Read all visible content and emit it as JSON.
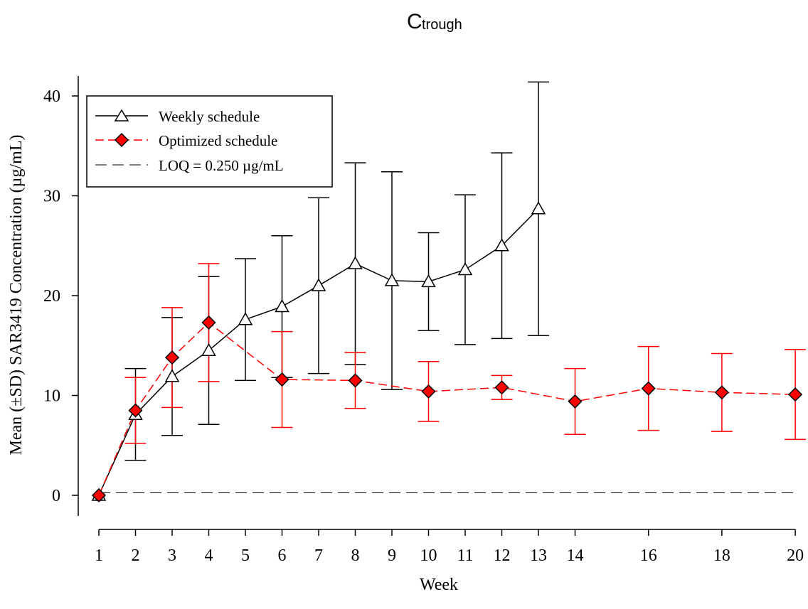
{
  "chart_data": {
    "type": "line",
    "title_main": "C",
    "title_sub": "trough",
    "xlabel": "Week",
    "ylabel": "Mean (±SD) SAR3419 Concentration  (µg/mL)",
    "xlim": [
      1,
      20
    ],
    "ylim": [
      -2,
      42
    ],
    "x_ticks": [
      1,
      2,
      3,
      4,
      5,
      6,
      7,
      8,
      9,
      10,
      11,
      12,
      13,
      14,
      16,
      18,
      20
    ],
    "y_ticks": [
      0,
      10,
      20,
      30,
      40
    ],
    "x_axis_note": "non-uniform spacing: weeks 1-13 at one interval, weeks 14-20 at a wider interval",
    "legend_position": "top-left",
    "grid": false,
    "series": [
      {
        "name": "Weekly schedule",
        "color": "#000000",
        "marker": "open-triangle",
        "line_style": "solid",
        "x": [
          1,
          2,
          3,
          4,
          5,
          6,
          7,
          8,
          9,
          10,
          11,
          12,
          13
        ],
        "values": [
          0,
          8.1,
          11.9,
          14.5,
          17.6,
          18.9,
          21.0,
          23.2,
          21.5,
          21.4,
          22.6,
          25.0,
          28.7
        ],
        "sd": [
          0,
          4.6,
          5.9,
          7.4,
          6.1,
          7.1,
          8.8,
          10.1,
          10.9,
          4.9,
          7.5,
          9.3,
          12.7
        ]
      },
      {
        "name": "Optimized schedule",
        "color": "#ff0000",
        "marker": "filled-diamond",
        "line_style": "dashed",
        "x": [
          1,
          2,
          3,
          4,
          6,
          8,
          10,
          12,
          14,
          16,
          18,
          20
        ],
        "values": [
          0,
          8.5,
          13.8,
          17.3,
          11.6,
          11.5,
          10.4,
          10.8,
          9.4,
          10.7,
          10.3,
          10.1
        ],
        "sd": [
          0,
          3.3,
          5.0,
          5.9,
          4.8,
          2.8,
          3.0,
          1.2,
          3.3,
          4.2,
          3.9,
          4.5
        ]
      },
      {
        "name": "LOQ = 0.250 µg/mL",
        "color": "#000000",
        "line_style": "long-dash",
        "x": [
          1,
          20
        ],
        "values": [
          0.25,
          0.25
        ]
      }
    ],
    "colors": {
      "weekly": "#000000",
      "optimized_line": "#ff0000",
      "optimized_fill": "#ff0000",
      "marker_edge": "#000000"
    }
  }
}
